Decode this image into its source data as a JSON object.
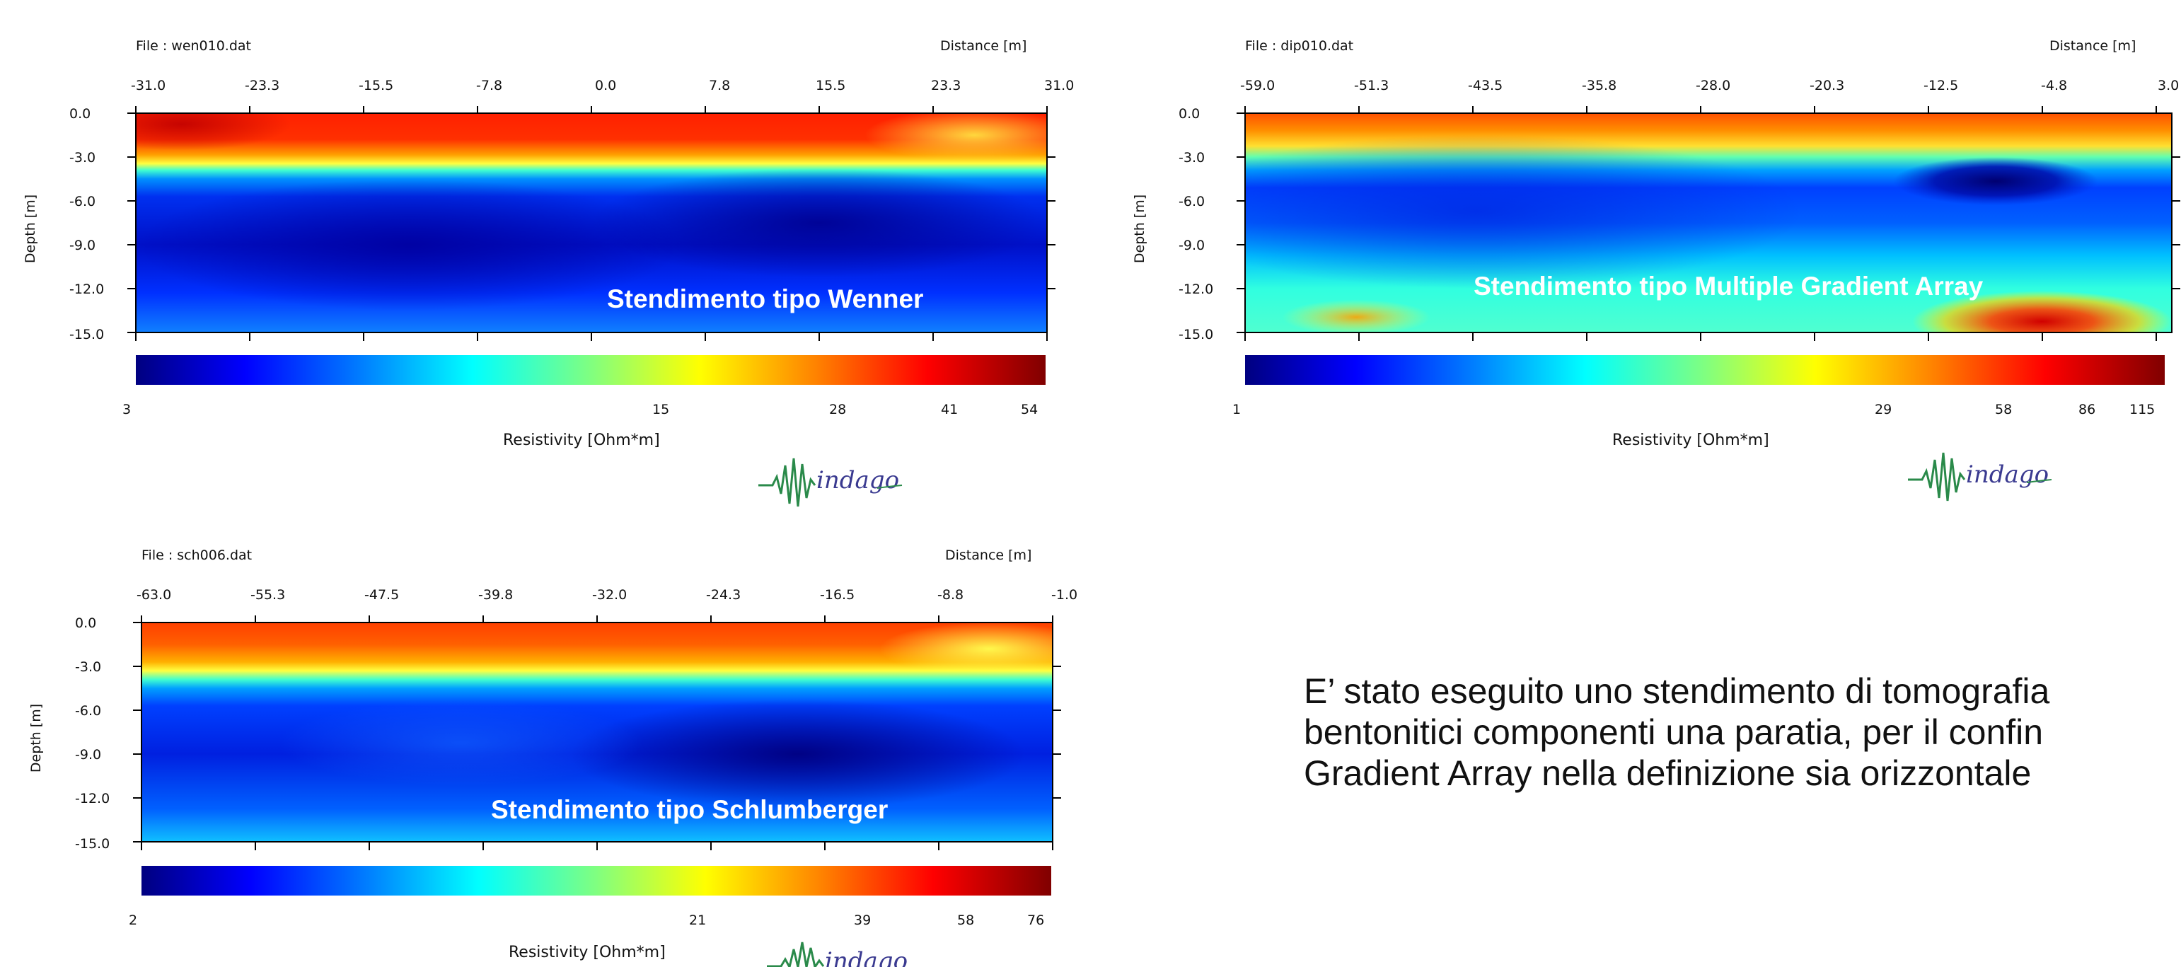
{
  "panels": [
    {
      "id": "wenner",
      "file_label": "File :  wen010.dat",
      "distance_label": "Distance [m]",
      "depth_label": "Depth [m]",
      "x_ticks": [
        "-31.0",
        "-23.3",
        "-15.5",
        "-7.8",
        "0.0",
        "7.8",
        "15.5",
        "23.3",
        "31.0"
      ],
      "y_ticks": [
        "0.0",
        "-3.0",
        "-6.0",
        "-9.0",
        "-12.0",
        "-15.0"
      ],
      "overlay_title": "Stendimento tipo  Wenner",
      "colorbar_ticks": [
        "3",
        "15",
        "28",
        "41",
        "54"
      ],
      "resistivity_label": "Resistivity [Ohm*m]"
    },
    {
      "id": "mga",
      "file_label": "File :  dip010.dat",
      "distance_label": "Distance [m]",
      "depth_label": "Depth [m]",
      "x_ticks": [
        "-59.0",
        "-51.3",
        "-43.5",
        "-35.8",
        "-28.0",
        "-20.3",
        "-12.5",
        "-4.8",
        "3.0"
      ],
      "y_ticks": [
        "0.0",
        "-3.0",
        "-6.0",
        "-9.0",
        "-12.0",
        "-15.0"
      ],
      "overlay_title": "Stendimento tipo  Multiple Gradient Array",
      "colorbar_ticks": [
        "1",
        "29",
        "58",
        "86",
        "115"
      ],
      "resistivity_label": "Resistivity [Ohm*m]"
    },
    {
      "id": "schlumberger",
      "file_label": "File :  sch006.dat",
      "distance_label": "Distance [m]",
      "depth_label": "Depth [m]",
      "x_ticks": [
        "-63.0",
        "-55.3",
        "-47.5",
        "-39.8",
        "-32.0",
        "-24.3",
        "-16.5",
        "-8.8",
        "-1.0"
      ],
      "y_ticks": [
        "0.0",
        "-3.0",
        "-6.0",
        "-9.0",
        "-12.0",
        "-15.0"
      ],
      "overlay_title": "Stendimento tipo  Schlumberger",
      "colorbar_ticks": [
        "2",
        "21",
        "39",
        "58",
        "76"
      ],
      "resistivity_label": "Resistivity [Ohm*m]"
    }
  ],
  "description": {
    "line1": "E’ stato eseguito uno stendimento di tomografia",
    "line2": "bentonitici componenti una paratia, per il confin",
    "line3": "Gradient Array nella definizione sia orizzontale"
  },
  "chart_data": [
    {
      "type": "heatmap",
      "title": "Stendimento tipo  Wenner",
      "xlabel": "Distance [m]",
      "ylabel": "Depth [m]",
      "xlim": [
        -31.0,
        31.0
      ],
      "ylim": [
        -15.0,
        0.0
      ],
      "colorbar_label": "Resistivity [Ohm*m]",
      "colorbar_ticks": [
        3,
        15,
        28,
        41,
        54
      ],
      "colormap": [
        "#000080",
        "#0000ff",
        "#0080ff",
        "#00ffff",
        "#80ff80",
        "#ffff00",
        "#ff8000",
        "#ff0000",
        "#800000"
      ]
    },
    {
      "type": "heatmap",
      "title": "Stendimento tipo  Multiple Gradient Array",
      "xlabel": "Distance [m]",
      "ylabel": "Depth [m]",
      "xlim": [
        -59.0,
        3.0
      ],
      "ylim": [
        -15.0,
        0.0
      ],
      "colorbar_label": "Resistivity [Ohm*m]",
      "colorbar_ticks": [
        1,
        29,
        58,
        86,
        115
      ],
      "colormap": [
        "#000080",
        "#0000ff",
        "#0080ff",
        "#00ffff",
        "#80ff80",
        "#ffff00",
        "#ff8000",
        "#ff0000",
        "#800000"
      ]
    },
    {
      "type": "heatmap",
      "title": "Stendimento tipo  Schlumberger",
      "xlabel": "Distance [m]",
      "ylabel": "Depth [m]",
      "xlim": [
        -63.0,
        -1.0
      ],
      "ylim": [
        -15.0,
        0.0
      ],
      "colorbar_label": "Resistivity [Ohm*m]",
      "colorbar_ticks": [
        2,
        21,
        39,
        58,
        76
      ],
      "colormap": [
        "#000080",
        "#0000ff",
        "#0080ff",
        "#00ffff",
        "#80ff80",
        "#ffff00",
        "#ff8000",
        "#ff0000",
        "#800000"
      ]
    }
  ]
}
